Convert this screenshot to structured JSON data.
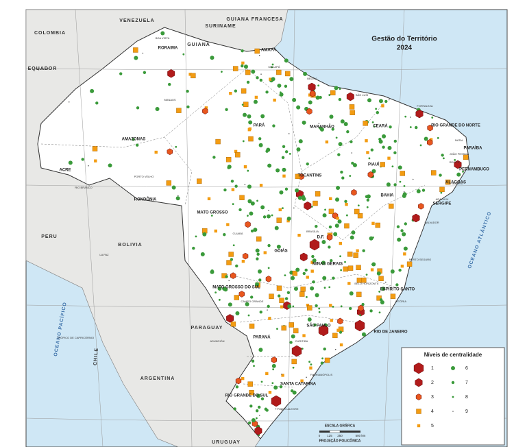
{
  "title": "Gestão do Território",
  "year": "2024",
  "countries": [
    "COLOMBIA",
    "VENEZUELA",
    "SURINAME",
    "GUIANA",
    "GUIANA FRANCESA",
    "PERU",
    "BOLIVIA",
    "CHILE",
    "ARGENTINA",
    "PARAGUAY",
    "URUGUAY",
    "EQUADOR"
  ],
  "states": [
    "AMAZONAS",
    "PARÁ",
    "ACRE",
    "RONDÔNIA",
    "RORAIMA",
    "AMAPÁ",
    "MARANHÃO",
    "CEARÁ",
    "RIO GRANDE DO NORTE",
    "PARAÍBA",
    "PERNAMBUCO",
    "ALAGOAS",
    "SERGIPE",
    "BAHIA",
    "TOCANTINS",
    "MATO GROSSO",
    "GOIÁS",
    "D.F.",
    "MINAS GERAIS",
    "MATO GROSSO DO SUL",
    "ESPÍRITO SANTO",
    "RIO DE JANEIRO",
    "SÃO PAULO",
    "PARANÁ",
    "SANTA CATARINA",
    "RIO GRANDE DO SUL",
    "PIAUÍ"
  ],
  "cities": [
    "MANAUS",
    "BOA VISTA",
    "MACAPÁ",
    "BELÉM",
    "SÃO LUÍS",
    "FORTALEZA",
    "NATAL",
    "JOÃO PESSOA",
    "RECIFE",
    "MACEIÓ",
    "ARACAJU",
    "SALVADOR",
    "PORTO VELHO",
    "RIO BRANCO",
    "CUIABÁ",
    "CAMPO GRANDE",
    "BRASÍLIA",
    "BELO HORIZONTE",
    "VITÓRIA",
    "CURITIBA",
    "FLORIANÓPOLIS",
    "PORTO ALEGRE",
    "PORTO SEGURO",
    "ASUNCIÓN",
    "LA PAZ"
  ],
  "oceans": [
    "OCEANO ATLÂNTICO",
    "OCEANO PACÍFICO"
  ],
  "lines": [
    "EQUADOR",
    "TRÓPICO DE CAPRICÓRNIO"
  ],
  "legend": {
    "title": "Níveis de centralidade",
    "levels": [
      "1",
      "2",
      "3",
      "4",
      "5",
      "6",
      "7",
      "8",
      "9"
    ]
  },
  "scale": {
    "title": "ESCALA GRÁFICA",
    "ticks": [
      "0",
      "125",
      "250",
      "500 km"
    ],
    "projection": "PROJEÇÃO POLICÔNICA"
  }
}
